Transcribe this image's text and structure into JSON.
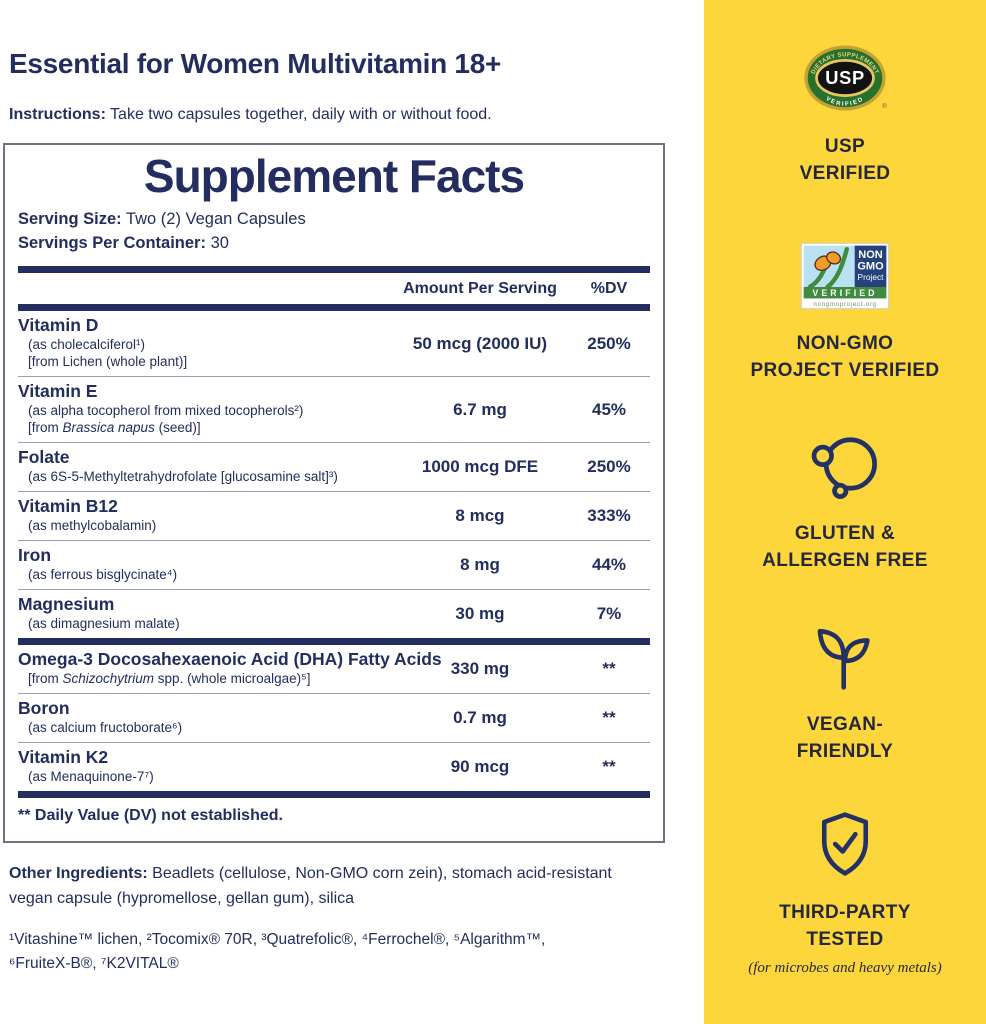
{
  "colors": {
    "navy_text": "#232D5F",
    "sidebar_yellow": "#FDD63C",
    "sidebar_label": "#25283A",
    "icon_navy": "#233165",
    "usp_green": "#27702E",
    "usp_gold": "#C3A133",
    "nongmo_navy": "#25427C",
    "nongmo_green": "#418B40",
    "nongmo_sky": "#B9E1F2",
    "butterfly_orange": "#F49A2B"
  },
  "header": {
    "title": "Essential for Women Multivitamin 18+",
    "instructions_label": "Instructions:",
    "instructions_text": "Take two capsules together, daily with or without food."
  },
  "facts": {
    "title": "Supplement Facts",
    "serving_size_label": "Serving Size:",
    "serving_size_value": "Two (2) Vegan Capsules",
    "servings_label": "Servings Per Container:",
    "servings_value": "30",
    "columns": {
      "amount": "Amount Per Serving",
      "dv": "%DV"
    },
    "rows": [
      {
        "name": "Vitamin D",
        "sublines": [
          "(as cholecalciferol¹)",
          "[from Lichen (whole plant)]"
        ],
        "amount": "50 mcg (2000 IU)",
        "dv": "250%",
        "after": "thin"
      },
      {
        "name": "Vitamin E",
        "sublines": [
          "(as alpha tocopherol from mixed tocopherols²)",
          "[from *Brassica napus* (seed)]"
        ],
        "amount": "6.7 mg",
        "dv": "45%",
        "after": "thin"
      },
      {
        "name": "Folate",
        "sublines": [
          "(as 6S-5-Methyltetrahydrofolate [glucosamine salt]³)"
        ],
        "amount": "1000 mcg DFE",
        "dv": "250%",
        "after": "thin"
      },
      {
        "name": "Vitamin B12",
        "sublines": [
          "(as methylcobalamin)"
        ],
        "amount": "8 mcg",
        "dv": "333%",
        "after": "thin"
      },
      {
        "name": "Iron",
        "sublines": [
          "(as ferrous bisglycinate⁴)"
        ],
        "amount": "8 mg",
        "dv": "44%",
        "after": "thin"
      },
      {
        "name": "Magnesium",
        "sublines": [
          "(as dimagnesium malate)"
        ],
        "amount": "30 mg",
        "dv": "7%",
        "after": "thick"
      },
      {
        "name": "Omega-3 Docosahexaenoic Acid (DHA) Fatty Acids",
        "sublines": [
          "[from *Schizochytrium* spp. (whole microalgae)⁵]"
        ],
        "amount": "330 mg",
        "dv": "**",
        "after": "thin"
      },
      {
        "name": "Boron",
        "sublines": [
          "(as calcium fructoborate⁶)"
        ],
        "amount": "0.7 mg",
        "dv": "**",
        "after": "thin"
      },
      {
        "name": "Vitamin K2",
        "sublines": [
          "(as Menaquinone-7⁷)"
        ],
        "amount": "90 mcg",
        "dv": "**",
        "after": "thick"
      }
    ],
    "footnote": "** Daily Value (DV) not established."
  },
  "other_ingredients": {
    "label": "Other Ingredients:",
    "text": "Beadlets (cellulose, Non-GMO corn zein), stomach acid-resistant vegan capsule (hypromellose, gellan gum), silica"
  },
  "footnotes": {
    "line1": "¹Vitashine™ lichen, ²Tocomix® 70R, ³Quatrefolic®, ⁴Ferrochel®, ⁵Algarithm™,",
    "line2": "⁶FruiteX-B®, ⁷K2VITAL®"
  },
  "sidebar": {
    "badges": [
      {
        "icon": "usp-seal-icon",
        "seal": {
          "top_arc": "DIETARY SUPPLEMENT",
          "center": "USP",
          "bottom_arc": "VERIFIED",
          "reg": "®"
        },
        "lines": [
          "USP",
          "VERIFIED"
        ]
      },
      {
        "icon": "non-gmo-project-icon",
        "logo": {
          "line1": "NON",
          "line2": "GMO",
          "line3": "Project",
          "band": "VERIFIED",
          "url": "nongmoproject.org"
        },
        "lines": [
          "NON-GMO",
          "PROJECT VERIFIED"
        ]
      },
      {
        "icon": "gluten-allergen-free-icon",
        "lines": [
          "GLUTEN &",
          "ALLERGEN FREE"
        ]
      },
      {
        "icon": "vegan-sprout-icon",
        "lines": [
          "VEGAN-",
          "FRIENDLY"
        ]
      },
      {
        "icon": "shield-check-icon",
        "lines": [
          "THIRD-PARTY",
          "TESTED"
        ],
        "note": "(for microbes and heavy metals)"
      }
    ]
  }
}
